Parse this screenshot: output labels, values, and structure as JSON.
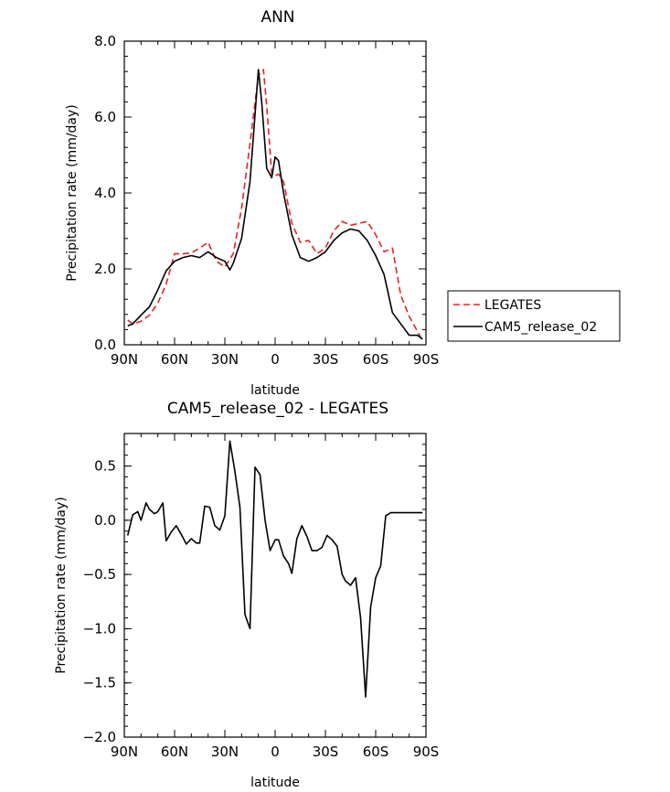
{
  "chart_data": [
    {
      "type": "line",
      "title": "ANN",
      "xlabel": "latitude",
      "ylabel": "Precipitation rate (mm/day)",
      "xlim": [
        90,
        -90
      ],
      "ylim": [
        0,
        8
      ],
      "x_ticks": [
        90,
        60,
        30,
        0,
        -30,
        -60,
        -90
      ],
      "x_tick_labels": [
        "90N",
        "60N",
        "30N",
        "0",
        "30S",
        "60S",
        "90S"
      ],
      "y_ticks": [
        0,
        2,
        4,
        6,
        8
      ],
      "y_tick_labels": [
        "0.0",
        "2.0",
        "4.0",
        "6.0",
        "8.0"
      ],
      "legend_position": "right-outside",
      "series": [
        {
          "name": "LEGATES",
          "color": "#e8231f",
          "dash": "dashed",
          "x": [
            88,
            85,
            80,
            75,
            70,
            65,
            60,
            55,
            50,
            45,
            40,
            35,
            30,
            25,
            20,
            15,
            10,
            7,
            5,
            2,
            0,
            -2,
            -5,
            -10,
            -15,
            -20,
            -25,
            -30,
            -35,
            -40,
            -45,
            -50,
            -55,
            -60,
            -65,
            -70,
            -75,
            -80,
            -85,
            -88
          ],
          "y": [
            0.65,
            0.55,
            0.62,
            0.78,
            1.1,
            1.6,
            2.4,
            2.4,
            2.42,
            2.55,
            2.7,
            2.2,
            2.05,
            2.4,
            3.6,
            5.3,
            7.1,
            7.25,
            6.3,
            4.5,
            4.45,
            4.5,
            4.3,
            3.2,
            2.7,
            2.75,
            2.4,
            2.55,
            3.0,
            3.25,
            3.15,
            3.2,
            3.25,
            2.9,
            2.45,
            2.55,
            1.3,
            0.75,
            0.35,
            0.1
          ]
        },
        {
          "name": "CAM5_release_02",
          "color": "#000000",
          "dash": "solid",
          "x": [
            88,
            85,
            80,
            75,
            70,
            65,
            60,
            55,
            50,
            45,
            40,
            35,
            30,
            27,
            25,
            20,
            15,
            10,
            8,
            5,
            2,
            0,
            -2,
            -5,
            -10,
            -15,
            -20,
            -25,
            -30,
            -35,
            -40,
            -45,
            -50,
            -55,
            -60,
            -65,
            -70,
            -75,
            -80,
            -85,
            -88
          ],
          "y": [
            0.5,
            0.55,
            0.78,
            1.0,
            1.45,
            1.95,
            2.2,
            2.3,
            2.35,
            2.3,
            2.45,
            2.3,
            2.2,
            1.97,
            2.15,
            2.8,
            4.3,
            7.25,
            6.4,
            4.65,
            4.4,
            4.95,
            4.85,
            4.0,
            2.9,
            2.3,
            2.2,
            2.3,
            2.45,
            2.75,
            2.95,
            3.05,
            3.0,
            2.75,
            2.35,
            1.85,
            0.85,
            0.55,
            0.25,
            0.25,
            0.15
          ]
        }
      ]
    },
    {
      "type": "line",
      "title": "CAM5_release_02 - LEGATES",
      "xlabel": "latitude",
      "ylabel": "Precipitation rate (mm/day)",
      "xlim": [
        90,
        -90
      ],
      "ylim": [
        -2,
        0.8
      ],
      "x_ticks": [
        90,
        60,
        30,
        0,
        -30,
        -60,
        -90
      ],
      "x_tick_labels": [
        "90N",
        "60N",
        "30N",
        "0",
        "30S",
        "60S",
        "90S"
      ],
      "y_ticks": [
        0.5,
        0,
        -0.5,
        -1,
        -1.5,
        -2
      ],
      "y_tick_labels": [
        "0.5",
        "0.0",
        "−0.5",
        "−1.0",
        "−1.5",
        "−2.0"
      ],
      "series": [
        {
          "name": "",
          "color": "#000000",
          "dash": "solid",
          "x": [
            88,
            85,
            82,
            80,
            77,
            75,
            72,
            70,
            67,
            65,
            62,
            59,
            56,
            53,
            50,
            47,
            45,
            42,
            39,
            36,
            33,
            30,
            27,
            24,
            21,
            18,
            15,
            12,
            9,
            6,
            3,
            0,
            -2,
            -5,
            -8,
            -10,
            -13,
            -16,
            -19,
            -22,
            -25,
            -28,
            -31,
            -34,
            -37,
            -40,
            -42,
            -45,
            -48,
            -51,
            -54,
            -57,
            -60,
            -63,
            -66,
            -69,
            -71,
            -74,
            -77,
            -80,
            -83,
            -86,
            -88
          ],
          "y": [
            -0.14,
            0.05,
            0.08,
            0.0,
            0.16,
            0.1,
            0.06,
            0.08,
            0.16,
            -0.19,
            -0.11,
            -0.05,
            -0.13,
            -0.22,
            -0.17,
            -0.21,
            -0.21,
            0.13,
            0.12,
            -0.05,
            -0.09,
            0.04,
            0.73,
            0.45,
            0.12,
            -0.87,
            -1.0,
            0.49,
            0.42,
            0.0,
            -0.28,
            -0.18,
            -0.18,
            -0.33,
            -0.4,
            -0.49,
            -0.17,
            -0.05,
            -0.15,
            -0.28,
            -0.28,
            -0.25,
            -0.14,
            -0.18,
            -0.24,
            -0.5,
            -0.56,
            -0.6,
            -0.53,
            -0.9,
            -1.63,
            -0.8,
            -0.53,
            -0.42,
            0.04,
            0.07,
            0.07,
            0.07,
            0.07,
            0.07,
            0.07,
            0.07,
            0.07
          ]
        }
      ]
    }
  ]
}
